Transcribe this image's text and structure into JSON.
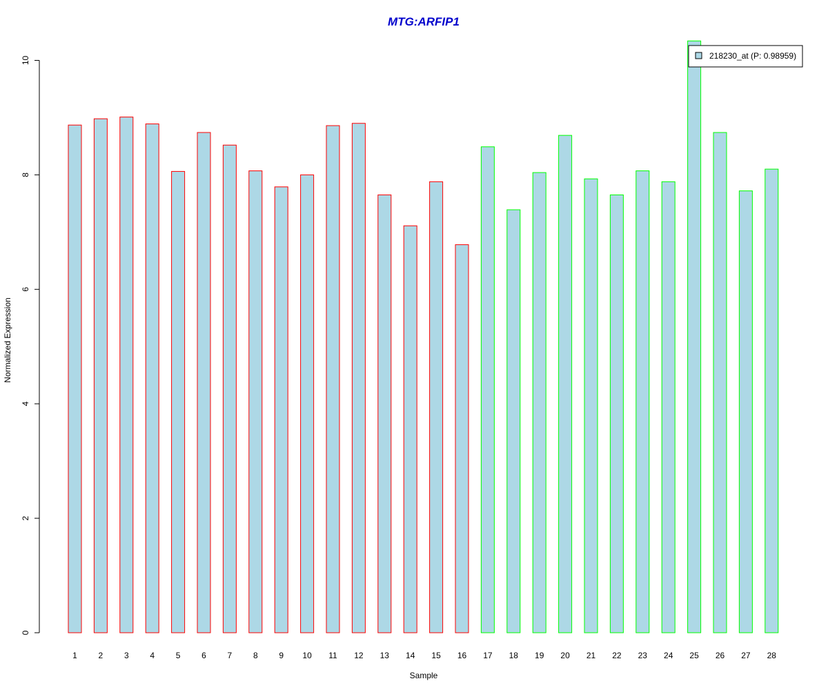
{
  "chart_data": {
    "type": "bar",
    "title": "MTG:ARFIP1",
    "xlabel": "Sample",
    "ylabel": "Normalized Expression",
    "categories": [
      "1",
      "2",
      "3",
      "4",
      "5",
      "6",
      "7",
      "8",
      "9",
      "10",
      "11",
      "12",
      "13",
      "14",
      "15",
      "16",
      "17",
      "18",
      "19",
      "20",
      "21",
      "22",
      "23",
      "24",
      "25",
      "26",
      "27",
      "28"
    ],
    "series": [
      {
        "name": "218230_at (P: 0.98959)",
        "values": [
          8.87,
          8.98,
          9.01,
          8.89,
          8.06,
          8.74,
          8.52,
          8.07,
          7.79,
          8.0,
          8.86,
          8.9,
          7.65,
          7.11,
          7.88,
          6.78,
          8.49,
          7.39,
          8.04,
          8.69,
          7.93,
          7.65,
          8.07,
          7.88,
          10.34,
          8.74,
          7.72,
          8.1
        ]
      }
    ],
    "yticks": [
      0,
      2,
      4,
      6,
      8,
      10
    ],
    "ylim": [
      0,
      10.34
    ],
    "grid": false,
    "legend_position": "top-right",
    "colors": {
      "title": "#0000cc",
      "bar_fill": "#add8e6",
      "group1_outline": "#ff0000",
      "group2_outline": "#00ff00",
      "group1_count": 16
    }
  }
}
